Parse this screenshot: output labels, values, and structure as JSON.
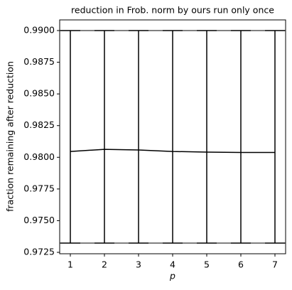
{
  "chart_data": {
    "type": "errorbar-line",
    "title": "reduction in Frob. norm by ours run only once",
    "x_label": "p",
    "y_label": "fraction remaining after reduction",
    "x": [
      1,
      2,
      3,
      4,
      5,
      6,
      7
    ],
    "series": [
      {
        "color": "#000000",
        "values": [
          0.98046,
          0.98063,
          0.98058,
          0.98046,
          0.98041,
          0.98038,
          0.98038
        ],
        "lower": [
          0.97323,
          0.97323,
          0.97323,
          0.97323,
          0.97323,
          0.97323,
          0.97323
        ],
        "upper": [
          0.99,
          0.99,
          0.99,
          0.99,
          0.99,
          0.99,
          0.99
        ]
      }
    ],
    "hlines": [
      0.99,
      0.97323
    ],
    "xlim": [
      0.6875,
      7.3125
    ],
    "ylim": [
      0.97239,
      0.99084
    ],
    "xticks": [
      1,
      2,
      3,
      4,
      5,
      6,
      7
    ],
    "yticks": [
      0.9725,
      {
        "value": 0.975,
        "label": "0.9750"
      },
      0.9775,
      {
        "value": 0.98,
        "label": "0.9800"
      },
      0.9825,
      {
        "value": 0.985,
        "label": "0.9850"
      },
      0.9875,
      {
        "value": 0.99,
        "label": "0.9900"
      }
    ]
  }
}
